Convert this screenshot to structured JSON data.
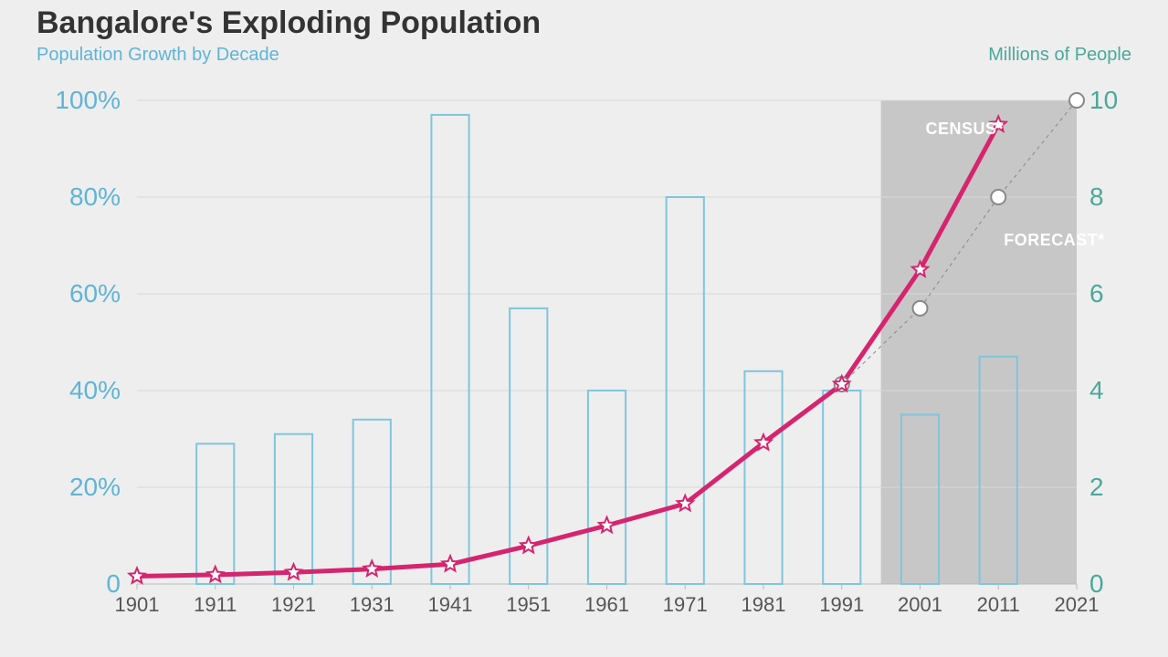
{
  "title": "Bangalore's Exploding Population",
  "subtitle_left": "Population Growth by Decade",
  "subtitle_right": "Millions of People",
  "chart": {
    "type": "combo-bar-line",
    "background_color": "#eeeeee",
    "grid_color": "#d8d8d8",
    "left_axis": {
      "label_color": "#5fb4d6",
      "ticks": [
        "0",
        "20%",
        "40%",
        "60%",
        "80%",
        "100%"
      ],
      "tick_values": [
        0,
        20,
        40,
        60,
        80,
        100
      ],
      "min": 0,
      "max": 100
    },
    "right_axis": {
      "label_color": "#4aa89a",
      "ticks": [
        "0",
        "2",
        "4",
        "6",
        "8",
        "10"
      ],
      "tick_values": [
        0,
        2,
        4,
        6,
        8,
        10
      ],
      "min": 0,
      "max": 10
    },
    "x_axis": {
      "labels": [
        "1901",
        "1911",
        "1921",
        "1931",
        "1941",
        "1951",
        "1961",
        "1971",
        "1981",
        "1991",
        "2001",
        "2011",
        "2021"
      ],
      "label_color": "#555555"
    },
    "bars": {
      "stroke_color": "#7fc5de",
      "stroke_width": 2,
      "bar_width_frac": 0.48,
      "values_pct": [
        null,
        29,
        31,
        34,
        97,
        57,
        40,
        80,
        44,
        40,
        35,
        47,
        null
      ]
    },
    "census_line": {
      "color": "#d6246e",
      "width": 5,
      "marker": "star",
      "marker_fill": "#ffffff",
      "marker_stroke": "#d6246e",
      "values_millions": [
        0.16,
        0.19,
        0.24,
        0.31,
        0.41,
        0.79,
        1.21,
        1.66,
        2.92,
        4.13,
        6.5,
        9.5
      ]
    },
    "forecast_line": {
      "color": "#888888",
      "width": 1,
      "dash": "4 4",
      "marker": "circle",
      "marker_fill": "#ffffff",
      "marker_stroke": "#888888",
      "start_index": 9,
      "values_millions": [
        4.13,
        5.7,
        8.0,
        10.0
      ]
    },
    "forecast_region": {
      "start_index": 9.5,
      "end_index": 12,
      "fill": "#b9b9b9",
      "opacity": 0.75
    },
    "annotations": {
      "census_label": "CENSUS*",
      "forecast_label": "FORECAST*",
      "color": "#ffffff",
      "fontsize": 18
    }
  }
}
